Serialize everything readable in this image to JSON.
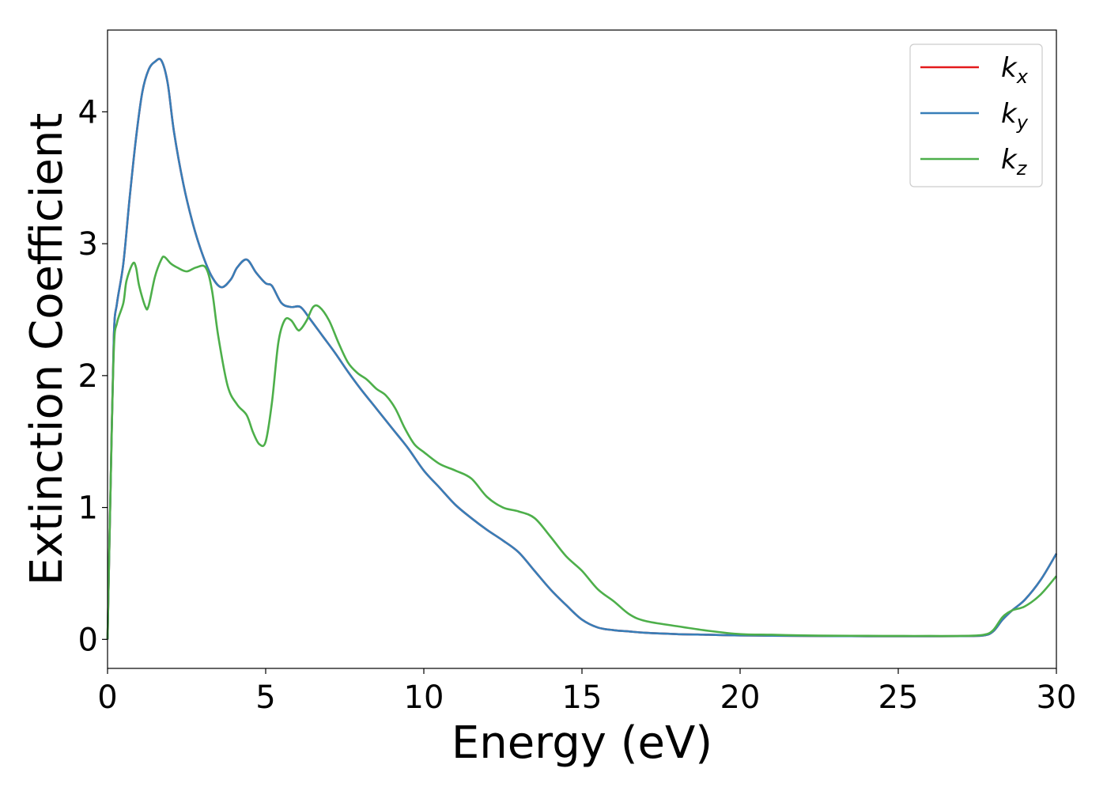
{
  "chart_data": {
    "type": "line",
    "xlabel": "Energy (eV)",
    "ylabel": "Extinction Coefficient",
    "xlim": [
      0,
      30
    ],
    "ylim": [
      -0.22,
      4.62
    ],
    "xticks": [
      0,
      5,
      10,
      15,
      20,
      25,
      30
    ],
    "yticks": [
      0,
      1,
      2,
      3,
      4
    ],
    "grid": false,
    "legend_position": "top-right",
    "series": [
      {
        "name": "k",
        "subscript": "x",
        "color": "#e41a1c",
        "x": [
          0,
          0.1,
          0.2,
          0.3,
          0.5,
          0.7,
          0.9,
          1.1,
          1.3,
          1.5,
          1.7,
          1.9,
          2.1,
          2.4,
          2.7,
          3.0,
          3.3,
          3.6,
          3.9,
          4.1,
          4.4,
          4.7,
          5.0,
          5.2,
          5.5,
          5.8,
          6.1,
          6.4,
          6.8,
          7.2,
          7.6,
          8.0,
          8.5,
          9.0,
          9.5,
          10.0,
          10.5,
          11.0,
          11.5,
          12.0,
          12.5,
          13.0,
          13.5,
          14.0,
          14.5,
          15.0,
          15.5,
          16.0,
          16.5,
          17.0,
          18.0,
          19.0,
          20.0,
          21.0,
          22.0,
          23.0,
          24.0,
          25.0,
          26.0,
          27.0,
          27.7,
          28.0,
          28.3,
          28.6,
          29.0,
          29.5,
          30.0
        ],
        "y": [
          0.0,
          1.2,
          2.3,
          2.55,
          2.85,
          3.35,
          3.8,
          4.15,
          4.32,
          4.38,
          4.39,
          4.22,
          3.85,
          3.45,
          3.15,
          2.92,
          2.75,
          2.67,
          2.73,
          2.82,
          2.88,
          2.78,
          2.7,
          2.68,
          2.55,
          2.52,
          2.52,
          2.43,
          2.3,
          2.17,
          2.03,
          1.9,
          1.75,
          1.6,
          1.45,
          1.28,
          1.15,
          1.02,
          0.92,
          0.83,
          0.75,
          0.66,
          0.52,
          0.38,
          0.26,
          0.15,
          0.09,
          0.07,
          0.06,
          0.05,
          0.04,
          0.035,
          0.03,
          0.028,
          0.026,
          0.025,
          0.024,
          0.024,
          0.024,
          0.025,
          0.03,
          0.06,
          0.15,
          0.22,
          0.3,
          0.45,
          0.65
        ]
      },
      {
        "name": "k",
        "subscript": "y",
        "color": "#377eb8",
        "x": [
          0,
          0.1,
          0.2,
          0.3,
          0.5,
          0.7,
          0.9,
          1.1,
          1.3,
          1.5,
          1.7,
          1.9,
          2.1,
          2.4,
          2.7,
          3.0,
          3.3,
          3.6,
          3.9,
          4.1,
          4.4,
          4.7,
          5.0,
          5.2,
          5.5,
          5.8,
          6.1,
          6.4,
          6.8,
          7.2,
          7.6,
          8.0,
          8.5,
          9.0,
          9.5,
          10.0,
          10.5,
          11.0,
          11.5,
          12.0,
          12.5,
          13.0,
          13.5,
          14.0,
          14.5,
          15.0,
          15.5,
          16.0,
          16.5,
          17.0,
          18.0,
          19.0,
          20.0,
          21.0,
          22.0,
          23.0,
          24.0,
          25.0,
          26.0,
          27.0,
          27.7,
          28.0,
          28.3,
          28.6,
          29.0,
          29.5,
          30.0
        ],
        "y": [
          0.0,
          1.2,
          2.3,
          2.55,
          2.85,
          3.35,
          3.8,
          4.15,
          4.32,
          4.38,
          4.39,
          4.22,
          3.85,
          3.45,
          3.15,
          2.92,
          2.75,
          2.67,
          2.73,
          2.82,
          2.88,
          2.78,
          2.7,
          2.68,
          2.55,
          2.52,
          2.52,
          2.43,
          2.3,
          2.17,
          2.03,
          1.9,
          1.75,
          1.6,
          1.45,
          1.28,
          1.15,
          1.02,
          0.92,
          0.83,
          0.75,
          0.66,
          0.52,
          0.38,
          0.26,
          0.15,
          0.09,
          0.07,
          0.06,
          0.05,
          0.04,
          0.035,
          0.03,
          0.028,
          0.026,
          0.025,
          0.024,
          0.024,
          0.024,
          0.025,
          0.03,
          0.06,
          0.15,
          0.22,
          0.3,
          0.45,
          0.65
        ]
      },
      {
        "name": "k",
        "subscript": "z",
        "color": "#4daf4a",
        "x": [
          0,
          0.1,
          0.2,
          0.3,
          0.5,
          0.6,
          0.8,
          0.9,
          1.0,
          1.2,
          1.3,
          1.5,
          1.7,
          1.8,
          2.0,
          2.2,
          2.5,
          2.8,
          3.1,
          3.3,
          3.5,
          3.8,
          4.1,
          4.4,
          4.6,
          4.8,
          5.0,
          5.2,
          5.4,
          5.6,
          5.8,
          6.0,
          6.1,
          6.3,
          6.5,
          6.7,
          7.0,
          7.3,
          7.6,
          7.9,
          8.2,
          8.5,
          8.8,
          9.1,
          9.4,
          9.7,
          10.0,
          10.5,
          11.0,
          11.5,
          12.0,
          12.5,
          13.0,
          13.5,
          14.0,
          14.5,
          15.0,
          15.5,
          16.0,
          16.5,
          17.0,
          18.0,
          19.0,
          20.0,
          21.0,
          22.0,
          23.0,
          24.0,
          25.0,
          26.0,
          27.0,
          27.7,
          28.0,
          28.3,
          28.6,
          29.0,
          29.5,
          30.0
        ],
        "y": [
          0.0,
          1.2,
          2.2,
          2.4,
          2.55,
          2.72,
          2.85,
          2.82,
          2.68,
          2.52,
          2.53,
          2.75,
          2.88,
          2.9,
          2.85,
          2.82,
          2.79,
          2.82,
          2.82,
          2.65,
          2.3,
          1.92,
          1.78,
          1.7,
          1.57,
          1.48,
          1.5,
          1.8,
          2.25,
          2.42,
          2.42,
          2.35,
          2.35,
          2.42,
          2.52,
          2.52,
          2.42,
          2.25,
          2.1,
          2.02,
          1.97,
          1.9,
          1.85,
          1.75,
          1.6,
          1.48,
          1.42,
          1.33,
          1.28,
          1.22,
          1.08,
          1.0,
          0.97,
          0.92,
          0.78,
          0.63,
          0.52,
          0.38,
          0.29,
          0.19,
          0.14,
          0.1,
          0.065,
          0.04,
          0.035,
          0.03,
          0.028,
          0.027,
          0.026,
          0.026,
          0.026,
          0.035,
          0.07,
          0.17,
          0.22,
          0.25,
          0.34,
          0.48
        ]
      }
    ]
  }
}
